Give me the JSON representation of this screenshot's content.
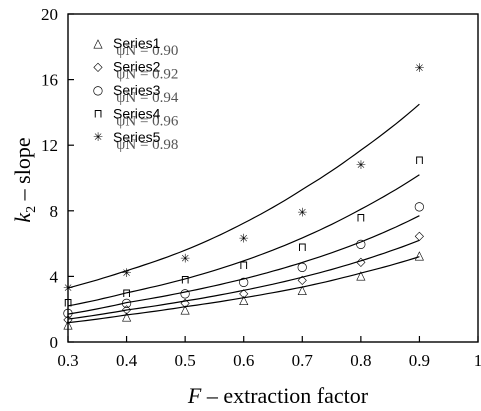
{
  "chart_data": {
    "type": "scatter",
    "xlabel": "F – extraction factor",
    "ylabel_main": "k",
    "ylabel_sub": "2",
    "ylabel_rest": " – slope",
    "xlim": [
      0.3,
      1.0
    ],
    "ylim": [
      0,
      20
    ],
    "x_ticks": [
      "0.3",
      "0.4",
      "0.5",
      "0.6",
      "0.7",
      "0.8",
      "0.9",
      "1"
    ],
    "y_ticks": [
      "0",
      "4",
      "8",
      "12",
      "16",
      "20"
    ],
    "grid": false,
    "legend_position": "top-left",
    "x": [
      0.3,
      0.4,
      0.5,
      0.6,
      0.7,
      0.8,
      0.9
    ],
    "series": [
      {
        "name": "Series1",
        "label_extra": "ψN = 0.90",
        "marker": "△",
        "values": [
          1.1,
          1.6,
          2.0,
          2.6,
          3.2,
          4.1,
          5.3
        ],
        "fit": [
          1.18,
          1.65,
          2.15,
          2.7,
          3.35,
          4.2,
          5.2
        ]
      },
      {
        "name": "Series2",
        "label_extra": "ψN = 0.92",
        "marker": "◇",
        "values": [
          1.4,
          2.0,
          2.4,
          3.0,
          3.8,
          4.9,
          6.5
        ],
        "fit": [
          1.4,
          1.95,
          2.5,
          3.15,
          3.95,
          4.95,
          6.2
        ]
      },
      {
        "name": "Series3",
        "label_extra": "ψN = 0.94",
        "marker": "○",
        "values": [
          1.8,
          2.4,
          3.0,
          3.7,
          4.6,
          6.0,
          8.3
        ],
        "fit": [
          1.7,
          2.4,
          3.05,
          3.85,
          4.85,
          6.1,
          7.7
        ]
      },
      {
        "name": "Series4",
        "label_extra": "ψN = 0.96",
        "marker": "⊓",
        "values": [
          2.4,
          3.0,
          3.8,
          4.7,
          5.8,
          7.6,
          11.1
        ],
        "fit": [
          2.2,
          3.0,
          3.85,
          4.95,
          6.35,
          8.1,
          10.2
        ]
      },
      {
        "name": "Series5",
        "label_extra": "ψN = 0.98",
        "marker": "✳",
        "values": [
          3.3,
          4.2,
          5.1,
          6.3,
          7.9,
          10.8,
          16.7
        ],
        "fit": [
          3.3,
          4.35,
          5.6,
          7.25,
          9.3,
          11.7,
          14.5
        ]
      }
    ]
  }
}
